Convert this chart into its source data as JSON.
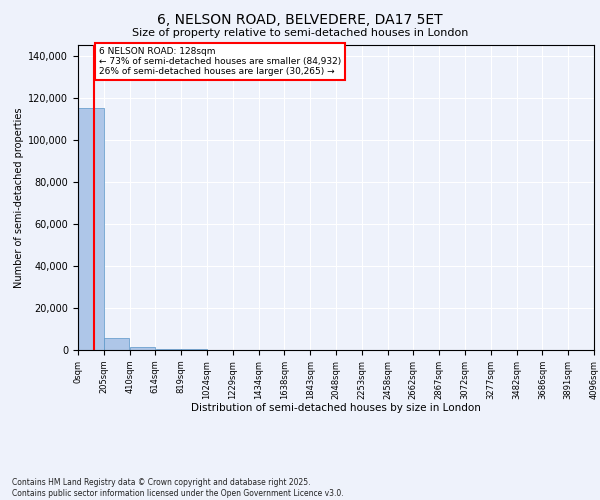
{
  "title": "6, NELSON ROAD, BELVEDERE, DA17 5ET",
  "subtitle": "Size of property relative to semi-detached houses in London",
  "xlabel": "Distribution of semi-detached houses by size in London",
  "ylabel": "Number of semi-detached properties",
  "annotation_title": "6 NELSON ROAD: 128sqm",
  "annotation_line1": "← 73% of semi-detached houses are smaller (84,932)",
  "annotation_line2": "26% of semi-detached houses are larger (30,265) →",
  "footer_line1": "Contains HM Land Registry data © Crown copyright and database right 2025.",
  "footer_line2": "Contains public sector information licensed under the Open Government Licence v3.0.",
  "property_size": 128,
  "bar_color": "#aec6e8",
  "bar_edge_color": "#5a96c8",
  "redline_color": "red",
  "background_color": "#eef2fb",
  "annotation_box_color": "white",
  "annotation_border_color": "red",
  "bin_edges": [
    0,
    205,
    410,
    614,
    819,
    1024,
    1229,
    1434,
    1638,
    1843,
    2048,
    2253,
    2458,
    2662,
    2867,
    3072,
    3277,
    3482,
    3686,
    3891,
    4096
  ],
  "bin_labels": [
    "0sqm",
    "205sqm",
    "410sqm",
    "614sqm",
    "819sqm",
    "1024sqm",
    "1229sqm",
    "1434sqm",
    "1638sqm",
    "1843sqm",
    "2048sqm",
    "2253sqm",
    "2458sqm",
    "2662sqm",
    "2867sqm",
    "3072sqm",
    "3277sqm",
    "3482sqm",
    "3686sqm",
    "3891sqm",
    "4096sqm"
  ],
  "counts": [
    115000,
    5500,
    1200,
    500,
    250,
    130,
    90,
    70,
    55,
    45,
    38,
    32,
    27,
    22,
    18,
    15,
    13,
    10,
    8,
    6
  ],
  "ylim": [
    0,
    145000
  ],
  "yticks": [
    0,
    20000,
    40000,
    60000,
    80000,
    100000,
    120000,
    140000
  ]
}
